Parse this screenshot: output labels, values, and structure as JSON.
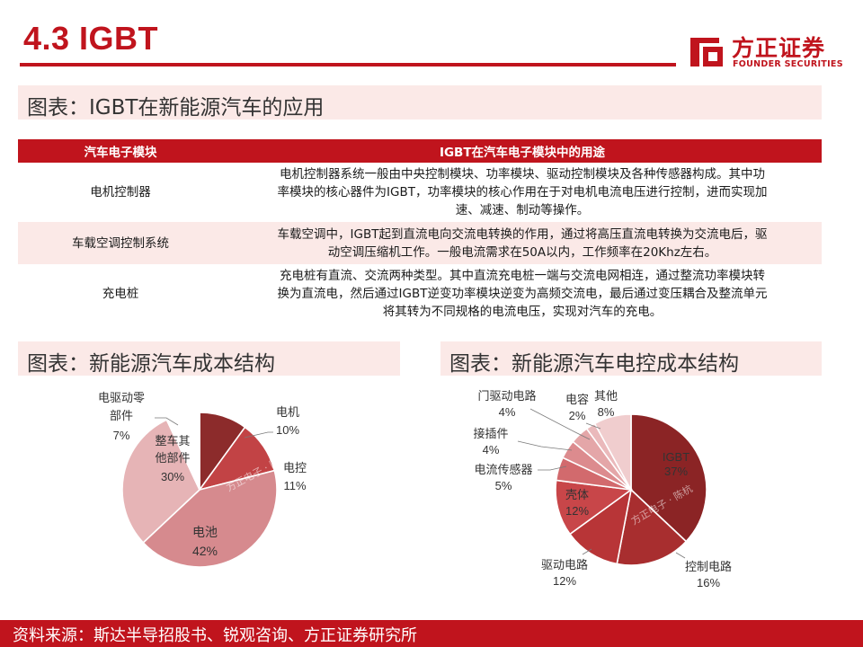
{
  "header": {
    "title": "4.3 IGBT",
    "logo_cn": "方正证券",
    "logo_en": "FOUNDER SECURITIES"
  },
  "sections": {
    "top": "图表：IGBT在新能源汽车的应用",
    "left": "图表：新能源汽车成本结构",
    "right": "图表：新能源汽车电控成本结构"
  },
  "table": {
    "headers": [
      "汽车电子模块",
      "IGBT在汽车电子模块中的用途"
    ],
    "rows": [
      {
        "module": "电机控制器",
        "lines": [
          "电机控制器系统一般由中央控制模块、功率模块、驱动控制模块及各种传感器构成。其中功",
          "率模块的核心器件为IGBT，功率模块的核心作用在于对电机电流电压进行控制，进而实现加",
          "速、减速、制动等操作。"
        ]
      },
      {
        "module": "车载空调控制系统",
        "lines": [
          "车载空调中，IGBT起到直流电向交流电转换的作用，通过将高压直流电转换为交流电后，驱",
          "动空调压缩机工作。一般电流需求在50A以内，工作频率在20Khz左右。"
        ]
      },
      {
        "module": "充电桩",
        "lines": [
          "充电桩有直流、交流两种类型。其中直流充电桩一端与交流电网相连，通过整流功率模块转",
          "换为直流电，然后通过IGBT逆变功率模块逆变为高频交流电，最后通过变压耦合及整流单元",
          "将其转为不同规格的电流电压，实现对汽车的充电。"
        ]
      }
    ]
  },
  "chart_data": [
    {
      "type": "pie",
      "title": "",
      "start_angle_deg": 0,
      "slices": [
        {
          "label": "电机",
          "value": 10,
          "display": "10%",
          "color": "#8c2b2b"
        },
        {
          "label": "电控",
          "value": 11,
          "display": "11%",
          "color": "#c24345"
        },
        {
          "label": "电池",
          "value": 42,
          "display": "42%",
          "color": "#d68a8e"
        },
        {
          "label": "整车其他部件",
          "value": 30,
          "display": "30%",
          "color": "#e6b4b6"
        },
        {
          "label": "电驱动零部件",
          "value": 7,
          "display": "7%",
          "color": "#ffffff"
        }
      ],
      "labels_display": {
        "电机": [
          "电机"
        ],
        "电控": [
          "电控"
        ],
        "电池": [
          "电池"
        ],
        "整车其他部件": [
          "整车其",
          "他部件"
        ],
        "电驱动零部件": [
          "电驱动零",
          "部件"
        ]
      },
      "watermark": "方正电子 · 陈杭"
    },
    {
      "type": "pie",
      "title": "",
      "start_angle_deg": 0,
      "slices": [
        {
          "label": "IGBT",
          "value": 37,
          "display": "37%",
          "color": "#8b2425"
        },
        {
          "label": "控制电路",
          "value": 16,
          "display": "16%",
          "color": "#a82e2f"
        },
        {
          "label": "驱动电路",
          "value": 12,
          "display": "12%",
          "color": "#b83537"
        },
        {
          "label": "壳体",
          "value": 12,
          "display": "12%",
          "color": "#c84649"
        },
        {
          "label": "电流传感器",
          "value": 5,
          "display": "5%",
          "color": "#d26a6d"
        },
        {
          "label": "接插件",
          "value": 4,
          "display": "4%",
          "color": "#dc8b8e"
        },
        {
          "label": "门驱动电路",
          "value": 4,
          "display": "4%",
          "color": "#e4a6a8"
        },
        {
          "label": "电容",
          "value": 2,
          "display": "2%",
          "color": "#eab9bb"
        },
        {
          "label": "其他",
          "value": 8,
          "display": "8%",
          "color": "#f0cdce"
        }
      ],
      "watermark": "方正电子 · 陈杭"
    }
  ],
  "footer": {
    "source": "资料来源：斯达半导招股书、锐观咨询、方正证券研究所"
  }
}
